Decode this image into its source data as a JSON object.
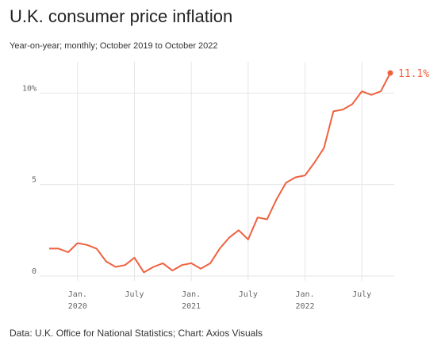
{
  "title": "U.K. consumer price inflation",
  "subtitle": "Year-on-year; monthly; October 2019 to October 2022",
  "source": "Data: U.K. Office for National Statistics; Chart: Axios Visuals",
  "colors": {
    "line": "#f0613f",
    "grid": "#e6e6e6",
    "text": "#666666"
  },
  "chart_data": {
    "type": "line",
    "title": "U.K. consumer price inflation",
    "subtitle": "Year-on-year; monthly; October 2019 to October 2022",
    "x_range": [
      "2019-10",
      "2022-10"
    ],
    "ylim": [
      0,
      11.1
    ],
    "y_ticks": [
      {
        "value": 0,
        "label": "0"
      },
      {
        "value": 5,
        "label": "5"
      },
      {
        "value": 10,
        "label": "10%"
      }
    ],
    "x_ticks": [
      {
        "date": "2020-01",
        "label": "Jan.",
        "sublabel": "2020"
      },
      {
        "date": "2020-07",
        "label": "July",
        "sublabel": ""
      },
      {
        "date": "2021-01",
        "label": "Jan.",
        "sublabel": "2021"
      },
      {
        "date": "2021-07",
        "label": "July",
        "sublabel": ""
      },
      {
        "date": "2022-01",
        "label": "Jan.",
        "sublabel": "2022"
      },
      {
        "date": "2022-07",
        "label": "July",
        "sublabel": ""
      }
    ],
    "grid": true,
    "series": [
      {
        "x": [
          "2019-10",
          "2019-11",
          "2019-12",
          "2020-01",
          "2020-02",
          "2020-03",
          "2020-04",
          "2020-05",
          "2020-06",
          "2020-07",
          "2020-08",
          "2020-09",
          "2020-10",
          "2020-11",
          "2020-12",
          "2021-01",
          "2021-02",
          "2021-03",
          "2021-04",
          "2021-05",
          "2021-06",
          "2021-07",
          "2021-08",
          "2021-09",
          "2021-10",
          "2021-11",
          "2021-12",
          "2022-01",
          "2022-02",
          "2022-03",
          "2022-04",
          "2022-05",
          "2022-06",
          "2022-07",
          "2022-08",
          "2022-09",
          "2022-10"
        ],
        "values": [
          1.5,
          1.5,
          1.3,
          1.8,
          1.7,
          1.5,
          0.8,
          0.5,
          0.6,
          1.0,
          0.2,
          0.5,
          0.7,
          0.3,
          0.6,
          0.7,
          0.4,
          0.7,
          1.5,
          2.1,
          2.5,
          2.0,
          3.2,
          3.1,
          4.2,
          5.1,
          5.4,
          5.5,
          6.2,
          7.0,
          9.0,
          9.1,
          9.4,
          10.1,
          9.9,
          10.1,
          11.1
        ]
      }
    ],
    "end_label": "11.1%"
  }
}
